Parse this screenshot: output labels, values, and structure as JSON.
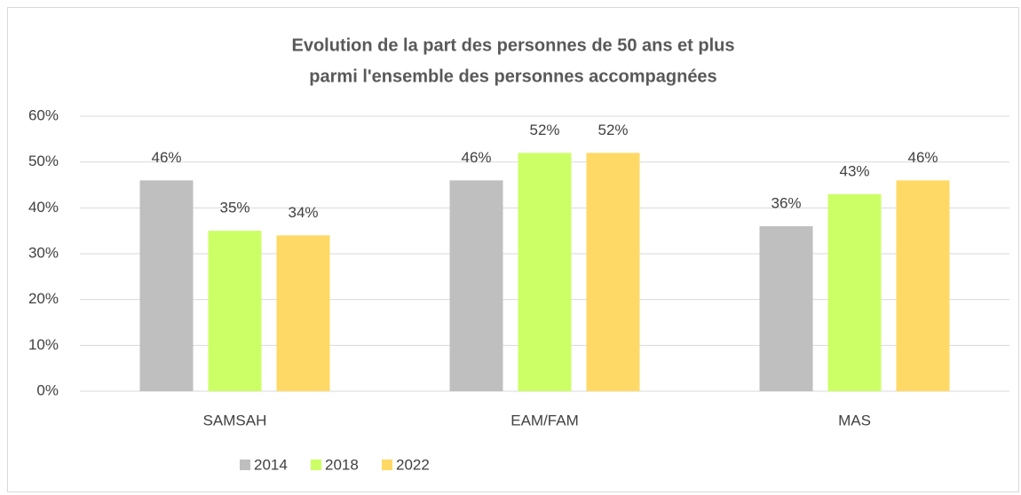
{
  "chart_data": {
    "type": "bar",
    "title": [
      "Evolution de la part des personnes de 50 ans et plus",
      "parmi l'ensemble des personnes accompagnées"
    ],
    "categories": [
      "SAMSAH",
      "EAM/FAM",
      "MAS"
    ],
    "series": [
      {
        "name": "2014",
        "color": "#bfbfbf",
        "values": [
          46,
          46,
          36
        ],
        "value_labels": [
          "46%",
          "46%",
          "36%"
        ]
      },
      {
        "name": "2018",
        "color": "#ccff66",
        "values": [
          35,
          52,
          43
        ],
        "value_labels": [
          "35%",
          "52%",
          "43%"
        ]
      },
      {
        "name": "2022",
        "color": "#ffd966",
        "values": [
          34,
          52,
          46
        ],
        "value_labels": [
          "34%",
          "52%",
          "46%"
        ]
      }
    ],
    "ylim": [
      0,
      60
    ],
    "yticks": [
      {
        "value": 0,
        "label": "0%"
      },
      {
        "value": 10,
        "label": "10%"
      },
      {
        "value": 20,
        "label": "20%"
      },
      {
        "value": 30,
        "label": "30%"
      },
      {
        "value": 40,
        "label": "40%"
      },
      {
        "value": 50,
        "label": "50%"
      },
      {
        "value": 60,
        "label": "60%"
      }
    ],
    "grid": true,
    "legend": "bottom"
  }
}
